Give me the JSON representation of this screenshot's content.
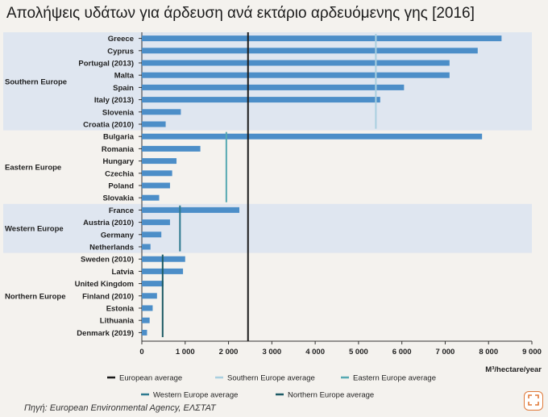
{
  "title": "Απολήψεις υδάτων για άρδευση ανά εκτάριο αρδευόμενης γης [2016]",
  "source": "Πηγή: European Environmental Agency, ΕΛΣΤΑΤ",
  "colors": {
    "bar": "#4c8ec8",
    "band": "#dfe6f0",
    "european_average": "#1a1a1a",
    "southern_average": "#a9cfe0",
    "eastern_average": "#56a9b2",
    "western_average": "#2e7a90",
    "northern_average": "#1c5a64",
    "fab_accent": "#e07a3a"
  },
  "fab": {
    "icon": "expand-arrows-icon"
  },
  "chart_data": {
    "type": "bar",
    "orientation": "horizontal",
    "xlabel": "M³/hectare/year",
    "xlim": [
      0,
      9000
    ],
    "xticks": [
      0,
      1000,
      2000,
      3000,
      4000,
      5000,
      6000,
      7000,
      8000,
      9000
    ],
    "xtick_labels": [
      "0",
      "1 000",
      "2 000",
      "3 000",
      "4 000",
      "5 000",
      "6 000",
      "7 000",
      "8 000",
      "9 000"
    ],
    "groups": [
      {
        "name": "Southern Europe",
        "shaded": true,
        "average": 5400,
        "average_color": "#a9cfe0",
        "categories": [
          "Greece",
          "Cyprus",
          "Portugal (2013)",
          "Malta",
          "Spain",
          "Italy (2013)",
          "Slovenia",
          "Croatia (2010)"
        ],
        "values": [
          8300,
          7750,
          7100,
          7100,
          6050,
          5500,
          900,
          550
        ]
      },
      {
        "name": "Eastern Europe",
        "shaded": false,
        "average": 1950,
        "average_color": "#56a9b2",
        "categories": [
          "Bulgaria",
          "Romania",
          "Hungary",
          "Czechia",
          "Poland",
          "Slovakia"
        ],
        "values": [
          7850,
          1350,
          800,
          700,
          650,
          400
        ]
      },
      {
        "name": "Western Europe",
        "shaded": true,
        "average": 880,
        "average_color": "#2e7a90",
        "categories": [
          "France",
          "Austria (2010)",
          "Germany",
          "Netherlands"
        ],
        "values": [
          2250,
          650,
          450,
          200
        ]
      },
      {
        "name": "Northern Europe",
        "shaded": false,
        "average": 480,
        "average_color": "#1c5a64",
        "categories": [
          "Sweden (2010)",
          "Latvia",
          "United Kingdom",
          "Finland (2010)",
          "Estonia",
          "Lithuania",
          "Denmark (2019)"
        ],
        "values": [
          1000,
          950,
          500,
          350,
          250,
          180,
          120
        ]
      }
    ],
    "european_average": 2450,
    "legend": [
      {
        "label": "European average",
        "color": "#1a1a1a"
      },
      {
        "label": "Southern Europe average",
        "color": "#a9cfe0"
      },
      {
        "label": "Eastern Europe average",
        "color": "#56a9b2"
      },
      {
        "label": "Western Europe average",
        "color": "#2e7a90"
      },
      {
        "label": "Northern Europe average",
        "color": "#1c5a64"
      }
    ],
    "legend_placement": "bottom",
    "grid": false
  }
}
